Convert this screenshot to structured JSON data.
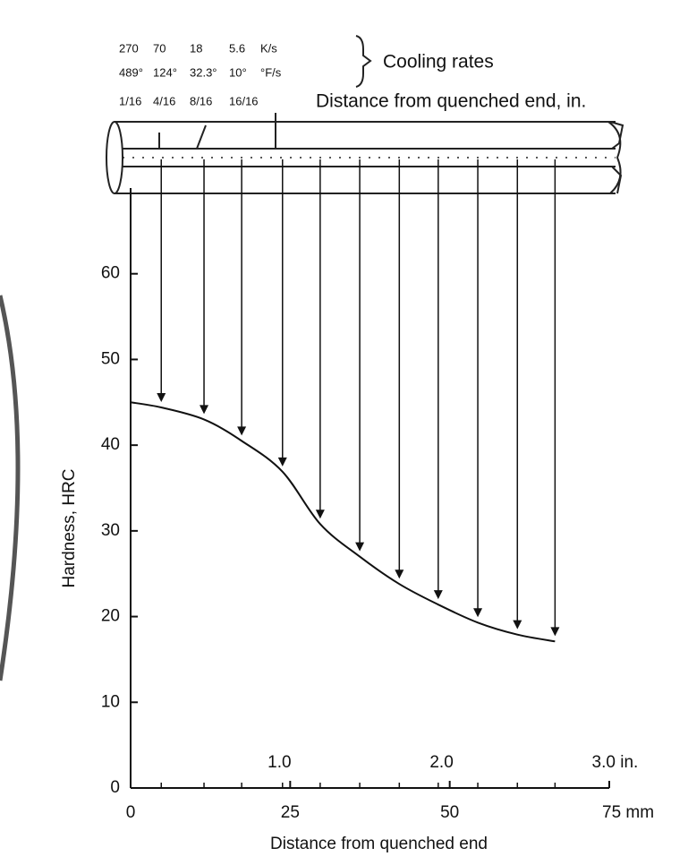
{
  "chart_data": {
    "type": "line",
    "x_label": "Distance from quenched end",
    "y_label": "Hardness, HRC",
    "xlim": [
      0,
      75
    ],
    "ylim": [
      0,
      70
    ],
    "xticks": [
      0,
      25,
      50,
      {
        "value": 75,
        "label": "75 mm"
      }
    ],
    "yticks": [
      0,
      10,
      20,
      30,
      40,
      50,
      60
    ],
    "x2ticks": [
      {
        "value": 1,
        "label": "1.0"
      },
      {
        "value": 2,
        "label": "2.0"
      },
      {
        "value": 3,
        "label": "3.0 in."
      }
    ],
    "series": [
      {
        "name": "Hardness",
        "color": "#111111",
        "x": [
          0,
          4.8,
          11.5,
          17.4,
          23.8,
          29.7,
          35.9,
          42.1,
          48.2,
          54.4,
          60.6,
          66.5
        ],
        "values": [
          45,
          44.4,
          43,
          40.5,
          36.9,
          30.8,
          27,
          23.8,
          21.4,
          19.3,
          17.9,
          17.1
        ]
      }
    ],
    "cooling_rates": {
      "label": "Cooling rates",
      "distance_label": "Distance from quenched end, in.",
      "rows": [
        [
          "270",
          "70",
          "18",
          "5.6",
          "K/s"
        ],
        [
          "489°",
          "124°",
          "32.3°",
          "10°",
          "°F/s"
        ],
        [
          "1/16",
          "4/16",
          "8/16",
          "16/16"
        ]
      ]
    }
  }
}
